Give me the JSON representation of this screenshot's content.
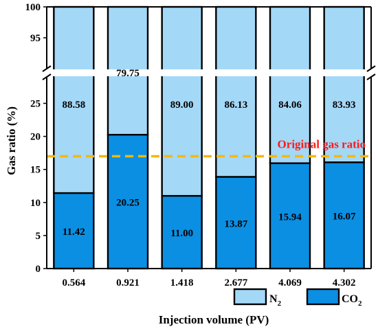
{
  "chart_data": {
    "type": "bar",
    "stacked": true,
    "categories": [
      "0.564",
      "0.921",
      "1.418",
      "2.677",
      "4.069",
      "4.302"
    ],
    "series": [
      {
        "name": "CO2",
        "legend_base": "CO",
        "legend_sub": "2",
        "color": "#0b8fe3",
        "values": [
          11.42,
          20.25,
          11.0,
          13.87,
          15.94,
          16.07
        ],
        "labels": [
          "11.42",
          "20.25",
          "11.00",
          "13.87",
          "15.94",
          "16.07"
        ]
      },
      {
        "name": "N2",
        "legend_base": "N",
        "legend_sub": "2",
        "color": "#a4d8f7",
        "values": [
          88.58,
          79.75,
          89.0,
          86.13,
          84.06,
          83.93
        ],
        "labels": [
          "88.58",
          "79.75",
          "89.00",
          "86.13",
          "84.06",
          "83.93"
        ]
      }
    ],
    "xlabel": "Injection volume (PV)",
    "ylabel": "Gas ratio (%)",
    "ylim": [
      0,
      100
    ],
    "axis_break": [
      29,
      90
    ],
    "yticks_lower": [
      "0",
      "5",
      "10",
      "15",
      "20",
      "25"
    ],
    "yticks_upper": [
      "95",
      "100"
    ],
    "yticks_lower_values": [
      0,
      5,
      10,
      15,
      20,
      25
    ],
    "yticks_upper_values": [
      95,
      100
    ],
    "reference_line": {
      "value": 17,
      "label": "Original gas ratio",
      "color": "#f5b800",
      "label_color": "#ff1a1a"
    },
    "legend": {
      "placement": "bottom-right"
    },
    "grid": false
  }
}
